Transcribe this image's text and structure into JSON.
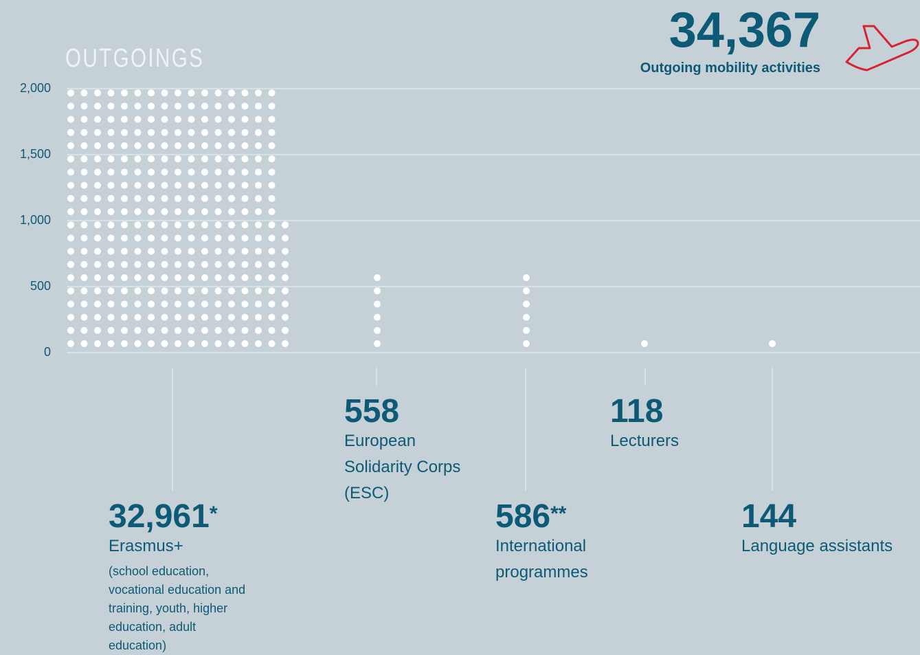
{
  "chart_data": {
    "type": "pictogram",
    "title": "OUTGOINGS",
    "total": {
      "value": 34367,
      "label": "34,367"
    },
    "total_caption": "Outgoing mobility activities",
    "categories": [
      "Erasmus+",
      "European Solidarity Corps (ESC)",
      "International programmes",
      "Lecturers",
      "Language assistants"
    ],
    "values": [
      32961,
      558,
      586,
      118,
      144
    ],
    "value_labels": [
      "32,961",
      "558",
      "586",
      "118",
      "144"
    ],
    "footnote_marks": [
      "*",
      null,
      "**",
      null,
      null
    ],
    "notes": [
      "(school education, vocational education and training, youth, higher education, adult education)",
      null,
      null,
      null,
      null
    ],
    "color": "#ffffff",
    "ylim": [
      0,
      2000
    ],
    "yticks": [
      0,
      500,
      {
        "value": 1000,
        "label": "1,000"
      },
      {
        "value": 1500,
        "label": "1,500"
      },
      {
        "value": 2000,
        "label": "2,000"
      }
    ],
    "grid": true
  }
}
